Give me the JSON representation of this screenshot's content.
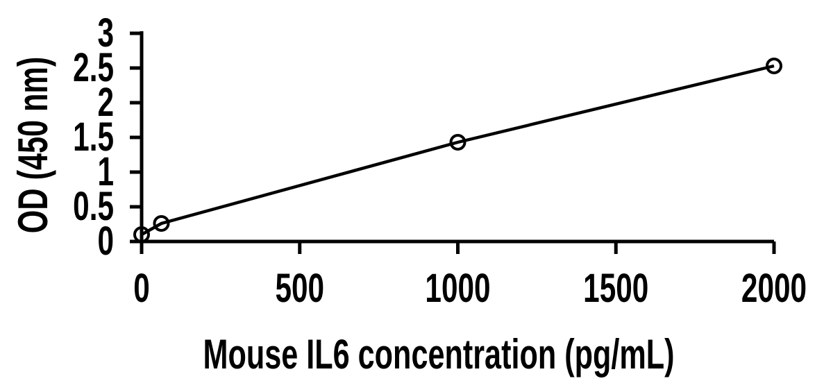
{
  "chart_data": {
    "type": "line",
    "title": "",
    "xlabel": "Mouse IL6 concentration (pg/mL)",
    "ylabel": "OD (450 nm)",
    "x": [
      0,
      62.5,
      1000,
      2000
    ],
    "y": [
      0.1,
      0.26,
      1.43,
      2.53
    ],
    "xlim": [
      0,
      2000
    ],
    "ylim": [
      0,
      3
    ],
    "x_ticks": {
      "values": [
        0,
        500,
        1000,
        1500,
        2000
      ],
      "labels": [
        "0",
        "500",
        "1000",
        "1500",
        "2000"
      ]
    },
    "y_ticks": {
      "values": [
        0,
        0.5,
        1,
        1.5,
        2,
        2.5,
        3
      ],
      "labels": [
        "0",
        "0.5",
        "1",
        "1.5",
        "2",
        "2.5",
        "3"
      ]
    },
    "grid": false,
    "legend": false,
    "marker": "open-circle",
    "line_color": "#000000",
    "background": "#ffffff"
  }
}
